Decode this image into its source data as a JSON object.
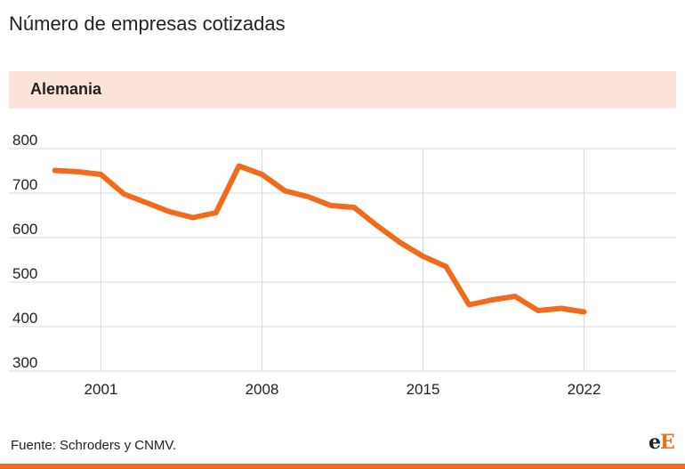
{
  "header": {
    "title": "Número de empresas cotizadas"
  },
  "panel": {
    "label": "Alemania"
  },
  "chart_data": {
    "type": "line",
    "title": "Número de empresas cotizadas",
    "subtitle": "Alemania",
    "xlim": [
      1997,
      2026
    ],
    "ylim": [
      300,
      800
    ],
    "x_ticks": [
      2001,
      2008,
      2015,
      2022
    ],
    "y_ticks": [
      800,
      700,
      600,
      500,
      400,
      300
    ],
    "grid": true,
    "color": "#f26b1d",
    "series": [
      {
        "x": [
          1999,
          2000,
          2001,
          2002,
          2003,
          2004,
          2005,
          2006,
          2007,
          2008,
          2009,
          2010,
          2011,
          2012,
          2013,
          2014,
          2015,
          2016,
          2017,
          2018,
          2019,
          2020,
          2021,
          2022
        ],
        "values": [
          751,
          748,
          742,
          698,
          678,
          658,
          645,
          656,
          761,
          742,
          705,
          692,
          672,
          668,
          627,
          589,
          558,
          535,
          449,
          460,
          468,
          436,
          441,
          433
        ]
      }
    ]
  },
  "footer": {
    "source": "Fuente: Schroders y CNMV.",
    "logo_e": "e",
    "logo_E": "E"
  }
}
